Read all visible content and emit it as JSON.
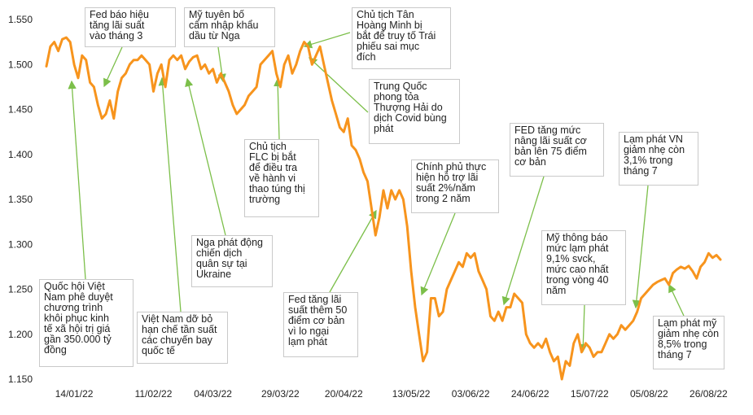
{
  "chart_data": {
    "type": "line",
    "title": "",
    "xlabel": "",
    "ylabel": "",
    "ylim": [
      1.15,
      1.55
    ],
    "y_ticks": [
      "1.150",
      "1.200",
      "1.250",
      "1.300",
      "1.350",
      "1.400",
      "1.450",
      "1.500",
      "1.550"
    ],
    "y_tick_values": [
      1.15,
      1.2,
      1.25,
      1.3,
      1.35,
      1.4,
      1.45,
      1.5,
      1.55
    ],
    "x_ticks": [
      "14/01/22",
      "11/02/22",
      "04/03/22",
      "29/03/22",
      "20/04/22",
      "13/05/22",
      "03/06/22",
      "24/06/22",
      "15/07/22",
      "05/08/22",
      "26/08/22"
    ],
    "x_tick_index": [
      7,
      27,
      42,
      59,
      75,
      92,
      107,
      122,
      137,
      152,
      167
    ],
    "series_color": "#f7941d",
    "grid": false,
    "legend": "none",
    "values": [
      1.498,
      1.52,
      1.525,
      1.515,
      1.528,
      1.53,
      1.525,
      1.5,
      1.485,
      1.51,
      1.505,
      1.48,
      1.475,
      1.455,
      1.44,
      1.445,
      1.46,
      1.44,
      1.47,
      1.485,
      1.49,
      1.5,
      1.505,
      1.505,
      1.51,
      1.505,
      1.5,
      1.47,
      1.49,
      1.5,
      1.475,
      1.505,
      1.51,
      1.505,
      1.51,
      1.495,
      1.503,
      1.508,
      1.51,
      1.495,
      1.5,
      1.49,
      1.495,
      1.48,
      1.49,
      1.48,
      1.47,
      1.455,
      1.445,
      1.45,
      1.455,
      1.465,
      1.47,
      1.475,
      1.5,
      1.505,
      1.51,
      1.515,
      1.49,
      1.475,
      1.5,
      1.51,
      1.49,
      1.5,
      1.515,
      1.525,
      1.52,
      1.5,
      1.51,
      1.52,
      1.5,
      1.48,
      1.46,
      1.445,
      1.43,
      1.425,
      1.44,
      1.41,
      1.405,
      1.395,
      1.38,
      1.37,
      1.34,
      1.31,
      1.33,
      1.36,
      1.34,
      1.36,
      1.35,
      1.36,
      1.35,
      1.32,
      1.27,
      1.23,
      1.2,
      1.17,
      1.18,
      1.24,
      1.24,
      1.22,
      1.225,
      1.25,
      1.26,
      1.27,
      1.28,
      1.275,
      1.29,
      1.285,
      1.29,
      1.27,
      1.26,
      1.25,
      1.22,
      1.215,
      1.225,
      1.215,
      1.23,
      1.23,
      1.245,
      1.24,
      1.235,
      1.2,
      1.19,
      1.185,
      1.19,
      1.185,
      1.195,
      1.18,
      1.17,
      1.175,
      1.15,
      1.17,
      1.165,
      1.19,
      1.2,
      1.18,
      1.19,
      1.185,
      1.175,
      1.18,
      1.18,
      1.19,
      1.2,
      1.195,
      1.2,
      1.21,
      1.205,
      1.21,
      1.215,
      1.225,
      1.24,
      1.245,
      1.25,
      1.255,
      1.258,
      1.26,
      1.262,
      1.255,
      1.268,
      1.272,
      1.275,
      1.273,
      1.276,
      1.27,
      1.262,
      1.275,
      1.28,
      1.29,
      1.285,
      1.288,
      1.283
    ]
  },
  "annotations": [
    {
      "id": "fed-signal",
      "lines": [
        "Fed báo hiệu",
        "tăng lãi suất",
        "vào tháng 3"
      ]
    },
    {
      "id": "us-ban-oil",
      "lines": [
        "Mỹ tuyên bố",
        "cấm nhập khẩu",
        "dầu từ Nga"
      ]
    },
    {
      "id": "tan-hoang-minh",
      "lines": [
        "Chủ tịch Tân",
        "Hoàng Minh bị",
        "bắt để truy tố Trái",
        "phiếu sai mục",
        "đích"
      ]
    },
    {
      "id": "shanghai-lockdown",
      "lines": [
        "Trung Quốc",
        "phong tỏa",
        "Thượng Hải do",
        "dịch Covid bùng",
        "phát"
      ]
    },
    {
      "id": "flc-arrest",
      "lines": [
        "Chủ tịch",
        "FLC bị bắt",
        "để điều tra",
        "về hành vi",
        "thao túng thị",
        "trường"
      ]
    },
    {
      "id": "gov-support",
      "lines": [
        "Chính phủ thực",
        "hiện hỗ trợ lãi",
        "suất 2%/năm",
        "trong 2 năm"
      ]
    },
    {
      "id": "fed-75bp",
      "lines": [
        "FED tăng mức",
        "nâng lãi suất cơ",
        "bản lên 75 điểm",
        "cơ bản"
      ]
    },
    {
      "id": "vn-inflation",
      "lines": [
        "Lạm phát VN",
        "giảm nhẹ còn",
        "3,1% trong",
        "tháng 7"
      ]
    },
    {
      "id": "russia-ukraine",
      "lines": [
        "Nga phát động",
        "chiến dịch",
        "quân sự tại",
        "Ukraine"
      ]
    },
    {
      "id": "us-inflation-high",
      "lines": [
        "Mỹ thông báo",
        "mức lạm phát",
        "9,1% svck,",
        "mức cao nhất",
        "trong vòng 40",
        "năm"
      ]
    },
    {
      "id": "vn-stimulus",
      "lines": [
        "Quốc hội Việt",
        "Nam phê duyệt",
        "chương trình",
        "khôi phục kinh",
        "tế xã hội trị giá",
        "gần 350.000 tỷ",
        "đồng"
      ]
    },
    {
      "id": "vn-flights",
      "lines": [
        "Việt Nam dỡ bỏ",
        "hạn chế tần suất",
        "các chuyến bay",
        "quốc tế"
      ]
    },
    {
      "id": "fed-50bp",
      "lines": [
        "Fed tăng lãi",
        "suất thêm 50",
        "điểm cơ bản",
        "vì lo ngại",
        "lạm phát"
      ]
    },
    {
      "id": "us-inflation-low",
      "lines": [
        "Lạm phát mỹ",
        "giảm nhẹ còn",
        "8,5% trong",
        "tháng 7"
      ]
    }
  ]
}
